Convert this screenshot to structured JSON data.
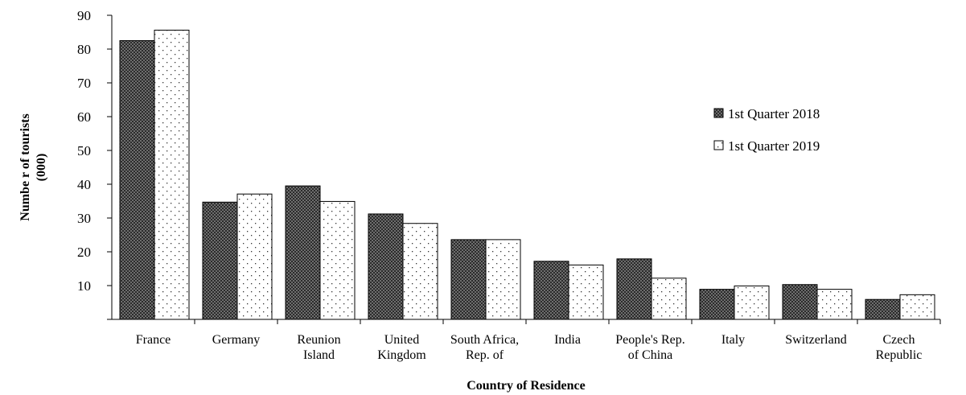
{
  "chart_data": {
    "type": "bar",
    "title": "",
    "xlabel": "Country of Residence",
    "ylabel_lines": [
      "Numbe r of tourists",
      "(000)"
    ],
    "ylim": [
      0,
      90
    ],
    "yticks": [
      10,
      20,
      30,
      40,
      50,
      60,
      70,
      80,
      90
    ],
    "grid": false,
    "legend_position": "right",
    "categories": [
      [
        "France"
      ],
      [
        "Germany"
      ],
      [
        "Reunion",
        "Island"
      ],
      [
        "United",
        "Kingdom"
      ],
      [
        "South Africa,",
        "Rep. of"
      ],
      [
        "India"
      ],
      [
        "People's Rep.",
        "of China"
      ],
      [
        "Italy"
      ],
      [
        "Switzerland"
      ],
      [
        "Czech",
        "Republic"
      ]
    ],
    "series": [
      {
        "name": "1st Quarter 2018",
        "pattern": "checker-dark",
        "values": [
          82.5,
          34.7,
          39.5,
          31.2,
          23.6,
          17.2,
          17.9,
          8.9,
          10.3,
          5.9
        ]
      },
      {
        "name": "1st Quarter 2019",
        "pattern": "dotted-light",
        "values": [
          85.6,
          37.1,
          34.9,
          28.4,
          23.6,
          16.1,
          12.2,
          9.9,
          8.9,
          7.3
        ]
      }
    ],
    "colors": {
      "dark_fill": "#2b2b2b",
      "dark_pattern": "#6e6e6e",
      "light_fill": "#ffffff",
      "dot": "#333333",
      "axis": "#000000"
    }
  }
}
